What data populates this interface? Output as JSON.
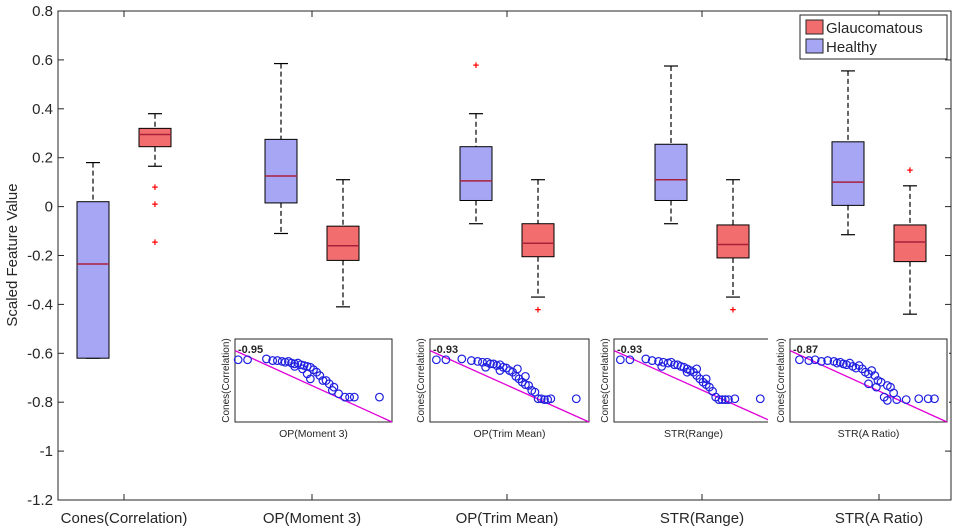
{
  "chart_data": {
    "type": "boxplot",
    "ylabel": "Scaled Feature Value",
    "ylim": [
      -1.2,
      0.8
    ],
    "yticks": [
      0.8,
      0.6,
      0.4,
      0.2,
      0,
      -0.2,
      -0.4,
      -0.6,
      -0.8,
      -1,
      -1.2
    ],
    "categories": [
      "Cones(Correlation)",
      "OP(Moment 3)",
      "OP(Trim Mean)",
      "STR(Range)",
      "STR(A Ratio)"
    ],
    "legend": [
      {
        "name": "Glaucomatous",
        "color": "#f26d6d"
      },
      {
        "name": "Healthy",
        "color": "#a6a6f5"
      }
    ],
    "series": [
      {
        "name": "Healthy",
        "color": "#a6a6f5",
        "boxes": [
          {
            "category": "Cones(Correlation)",
            "min": -0.62,
            "q1": -0.62,
            "median": -0.235,
            "q3": 0.02,
            "max": 0.18,
            "outliers": []
          },
          {
            "category": "OP(Moment 3)",
            "min": -0.11,
            "q1": 0.015,
            "median": 0.125,
            "q3": 0.275,
            "max": 0.585,
            "outliers": []
          },
          {
            "category": "OP(Trim Mean)",
            "min": -0.07,
            "q1": 0.025,
            "median": 0.105,
            "q3": 0.245,
            "max": 0.38,
            "outliers": [
              0.58
            ]
          },
          {
            "category": "STR(Range)",
            "min": -0.07,
            "q1": 0.025,
            "median": 0.11,
            "q3": 0.255,
            "max": 0.575,
            "outliers": []
          },
          {
            "category": "STR(A Ratio)",
            "min": -0.115,
            "q1": 0.005,
            "median": 0.1,
            "q3": 0.265,
            "max": 0.555,
            "outliers": []
          }
        ]
      },
      {
        "name": "Glaucomatous",
        "color": "#f26d6d",
        "boxes": [
          {
            "category": "Cones(Correlation)",
            "min": 0.165,
            "q1": 0.245,
            "median": 0.295,
            "q3": 0.32,
            "max": 0.38,
            "outliers": [
              0.08,
              0.01,
              -0.145
            ]
          },
          {
            "category": "OP(Moment 3)",
            "min": -0.41,
            "q1": -0.22,
            "median": -0.16,
            "q3": -0.08,
            "max": 0.11,
            "outliers": []
          },
          {
            "category": "OP(Trim Mean)",
            "min": -0.37,
            "q1": -0.205,
            "median": -0.15,
            "q3": -0.07,
            "max": 0.11,
            "outliers": [
              -0.42
            ]
          },
          {
            "category": "STR(Range)",
            "min": -0.37,
            "q1": -0.21,
            "median": -0.155,
            "q3": -0.075,
            "max": 0.11,
            "outliers": [
              -0.42
            ]
          },
          {
            "category": "STR(A Ratio)",
            "min": -0.44,
            "q1": -0.225,
            "median": -0.145,
            "q3": -0.075,
            "max": 0.085,
            "outliers": [
              0.15
            ]
          }
        ]
      }
    ],
    "insets": [
      {
        "type": "scatter",
        "xlabel": "OP(Moment 3)",
        "ylabel": "Cones(Correlation)",
        "correlation": "-0.95",
        "fit_line": {
          "start": [
            0,
            0.86
          ],
          "end": [
            1,
            0.0
          ]
        },
        "points": [
          [
            0.02,
            0.75
          ],
          [
            0.08,
            0.75
          ],
          [
            0.2,
            0.76
          ],
          [
            0.24,
            0.74
          ],
          [
            0.27,
            0.74
          ],
          [
            0.3,
            0.73
          ],
          [
            0.32,
            0.72
          ],
          [
            0.34,
            0.73
          ],
          [
            0.36,
            0.71
          ],
          [
            0.38,
            0.7
          ],
          [
            0.4,
            0.71
          ],
          [
            0.42,
            0.69
          ],
          [
            0.44,
            0.68
          ],
          [
            0.46,
            0.67
          ],
          [
            0.48,
            0.66
          ],
          [
            0.5,
            0.63
          ],
          [
            0.52,
            0.6
          ],
          [
            0.54,
            0.56
          ],
          [
            0.56,
            0.5
          ],
          [
            0.58,
            0.5
          ],
          [
            0.6,
            0.46
          ],
          [
            0.63,
            0.42
          ],
          [
            0.46,
            0.58
          ],
          [
            0.48,
            0.52
          ],
          [
            0.66,
            0.34
          ],
          [
            0.7,
            0.3
          ],
          [
            0.73,
            0.3
          ],
          [
            0.76,
            0.3
          ],
          [
            0.62,
            0.38
          ],
          [
            0.92,
            0.3
          ],
          [
            0.38,
            0.67
          ],
          [
            0.43,
            0.64
          ]
        ]
      },
      {
        "type": "scatter",
        "xlabel": "OP(Trim Mean)",
        "ylabel": "Cones(Correlation)",
        "correlation": "-0.93",
        "fit_line": {
          "start": [
            0,
            0.86
          ],
          "end": [
            1,
            0.0
          ]
        },
        "points": [
          [
            0.04,
            0.75
          ],
          [
            0.1,
            0.75
          ],
          [
            0.2,
            0.76
          ],
          [
            0.26,
            0.74
          ],
          [
            0.3,
            0.73
          ],
          [
            0.33,
            0.72
          ],
          [
            0.36,
            0.72
          ],
          [
            0.38,
            0.7
          ],
          [
            0.4,
            0.7
          ],
          [
            0.42,
            0.68
          ],
          [
            0.44,
            0.69
          ],
          [
            0.46,
            0.66
          ],
          [
            0.48,
            0.65
          ],
          [
            0.5,
            0.62
          ],
          [
            0.52,
            0.6
          ],
          [
            0.54,
            0.55
          ],
          [
            0.56,
            0.52
          ],
          [
            0.58,
            0.48
          ],
          [
            0.6,
            0.45
          ],
          [
            0.62,
            0.44
          ],
          [
            0.64,
            0.38
          ],
          [
            0.66,
            0.36
          ],
          [
            0.68,
            0.28
          ],
          [
            0.7,
            0.28
          ],
          [
            0.72,
            0.27
          ],
          [
            0.74,
            0.27
          ],
          [
            0.76,
            0.28
          ],
          [
            0.92,
            0.28
          ],
          [
            0.44,
            0.62
          ],
          [
            0.55,
            0.64
          ],
          [
            0.6,
            0.55
          ],
          [
            0.35,
            0.66
          ]
        ]
      },
      {
        "type": "scatter",
        "xlabel": "STR(Range)",
        "ylabel": "Cones(Correlation)",
        "correlation": "-0.93",
        "fit_line": {
          "start": [
            0,
            0.86
          ],
          "end": [
            1,
            0.0
          ]
        },
        "points": [
          [
            0.04,
            0.75
          ],
          [
            0.1,
            0.75
          ],
          [
            0.2,
            0.76
          ],
          [
            0.24,
            0.74
          ],
          [
            0.28,
            0.73
          ],
          [
            0.31,
            0.72
          ],
          [
            0.34,
            0.71
          ],
          [
            0.36,
            0.72
          ],
          [
            0.38,
            0.69
          ],
          [
            0.4,
            0.69
          ],
          [
            0.42,
            0.67
          ],
          [
            0.44,
            0.66
          ],
          [
            0.46,
            0.64
          ],
          [
            0.48,
            0.62
          ],
          [
            0.5,
            0.6
          ],
          [
            0.52,
            0.56
          ],
          [
            0.54,
            0.52
          ],
          [
            0.56,
            0.48
          ],
          [
            0.58,
            0.45
          ],
          [
            0.6,
            0.42
          ],
          [
            0.62,
            0.37
          ],
          [
            0.64,
            0.3
          ],
          [
            0.66,
            0.27
          ],
          [
            0.68,
            0.27
          ],
          [
            0.7,
            0.27
          ],
          [
            0.72,
            0.27
          ],
          [
            0.76,
            0.28
          ],
          [
            0.92,
            0.28
          ],
          [
            0.3,
            0.67
          ],
          [
            0.46,
            0.6
          ],
          [
            0.52,
            0.64
          ],
          [
            0.58,
            0.52
          ]
        ]
      },
      {
        "type": "scatter",
        "xlabel": "STR(A Ratio)",
        "ylabel": "Cones(Correlation)",
        "correlation": "-0.87",
        "fit_line": {
          "start": [
            0,
            0.86
          ],
          "end": [
            1,
            0.0
          ]
        },
        "points": [
          [
            0.06,
            0.75
          ],
          [
            0.12,
            0.74
          ],
          [
            0.16,
            0.75
          ],
          [
            0.2,
            0.73
          ],
          [
            0.24,
            0.74
          ],
          [
            0.28,
            0.73
          ],
          [
            0.3,
            0.71
          ],
          [
            0.32,
            0.72
          ],
          [
            0.34,
            0.7
          ],
          [
            0.36,
            0.69
          ],
          [
            0.38,
            0.71
          ],
          [
            0.4,
            0.67
          ],
          [
            0.42,
            0.65
          ],
          [
            0.44,
            0.68
          ],
          [
            0.46,
            0.64
          ],
          [
            0.48,
            0.6
          ],
          [
            0.5,
            0.58
          ],
          [
            0.52,
            0.62
          ],
          [
            0.54,
            0.56
          ],
          [
            0.56,
            0.5
          ],
          [
            0.58,
            0.48
          ],
          [
            0.62,
            0.44
          ],
          [
            0.64,
            0.42
          ],
          [
            0.66,
            0.35
          ],
          [
            0.6,
            0.3
          ],
          [
            0.62,
            0.26
          ],
          [
            0.68,
            0.27
          ],
          [
            0.74,
            0.27
          ],
          [
            0.82,
            0.28
          ],
          [
            0.88,
            0.28
          ],
          [
            0.92,
            0.28
          ],
          [
            0.5,
            0.46
          ],
          [
            0.55,
            0.42
          ]
        ]
      }
    ]
  }
}
